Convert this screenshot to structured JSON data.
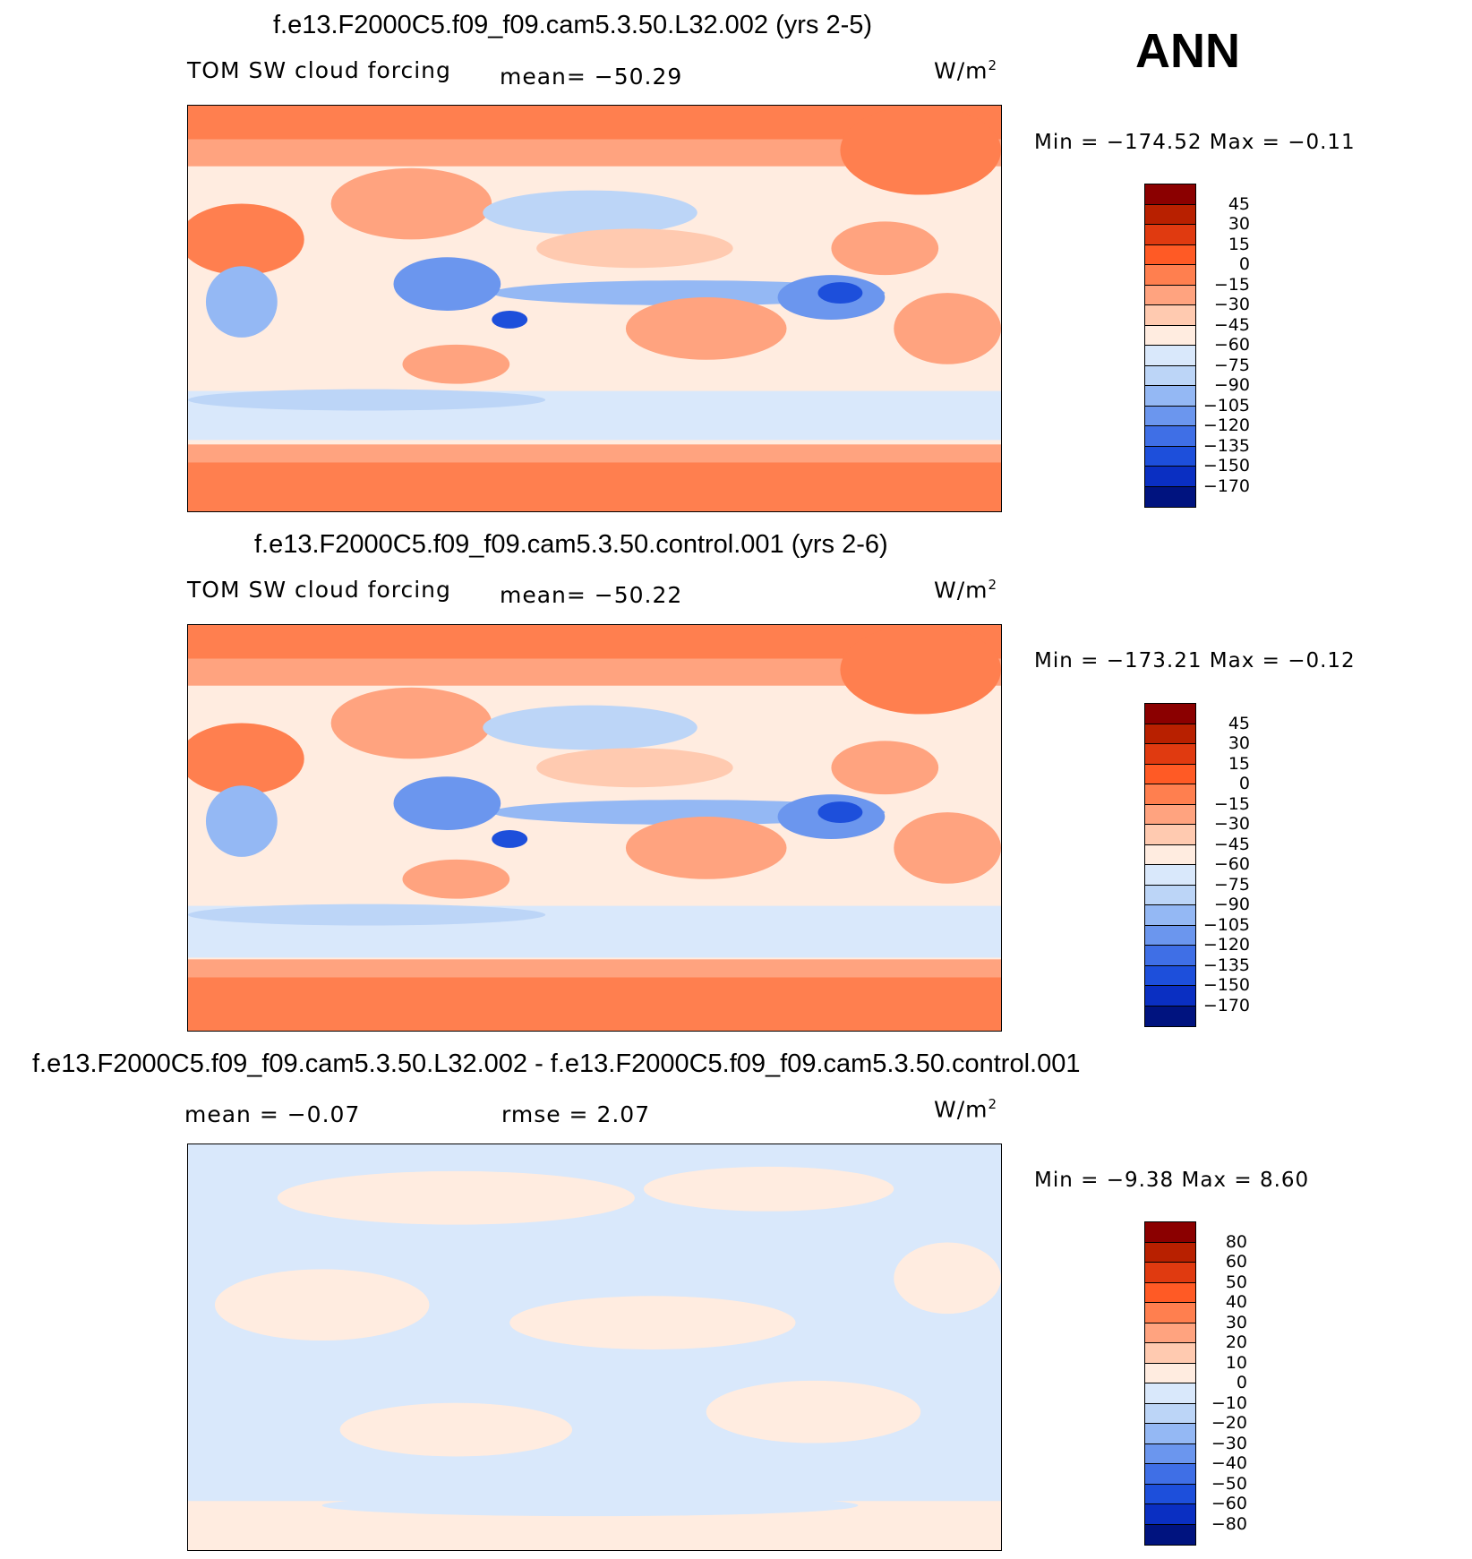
{
  "season": "ANN",
  "units_label": "W/m",
  "units_sup": "2",
  "colors_abs": [
    "#8b0000",
    "#b82000",
    "#e03a10",
    "#ff5a25",
    "#ff7f4f",
    "#ffa37f",
    "#ffcab0",
    "#ffece0",
    "#d9e8fb",
    "#bcd5f7",
    "#94b8f4",
    "#6b96ee",
    "#3f6fe6",
    "#1d4fdb",
    "#0a2fc2",
    "#00137f"
  ],
  "colors_diff": [
    "#8b0000",
    "#b82000",
    "#e03a10",
    "#ff5a25",
    "#ff7f4f",
    "#ffa37f",
    "#ffcab0",
    "#ffece0",
    "#d9e8fb",
    "#bcd5f7",
    "#94b8f4",
    "#6b96ee",
    "#3f6fe6",
    "#1d4fdb",
    "#0a2fc2",
    "#00137f"
  ],
  "panels": [
    {
      "title": "f.e13.F2000C5.f09_f09.cam5.3.50.L32.002 (yrs 2-5)",
      "field": "TOM SW cloud forcing",
      "stat": "mean= −50.29",
      "minmax": "Min = −174.52  Max =   −0.11",
      "levels": [
        "45",
        "30",
        "15",
        "0",
        "−15",
        "−30",
        "−45",
        "−60",
        "−75",
        "−90",
        "−105",
        "−120",
        "−135",
        "−150",
        "−170"
      ]
    },
    {
      "title": "f.e13.F2000C5.f09_f09.cam5.3.50.control.001 (yrs 2-6)",
      "field": "TOM SW cloud forcing",
      "stat": "mean= −50.22",
      "minmax": "Min = −173.21  Max =   −0.12",
      "levels": [
        "45",
        "30",
        "15",
        "0",
        "−15",
        "−30",
        "−45",
        "−60",
        "−75",
        "−90",
        "−105",
        "−120",
        "−135",
        "−150",
        "−170"
      ]
    },
    {
      "title": "f.e13.F2000C5.f09_f09.cam5.3.50.L32.002 - f.e13.F2000C5.f09_f09.cam5.3.50.control.001",
      "stat_mean": "mean =   −0.07",
      "stat_rmse": "rmse =     2.07",
      "minmax": "Min =   −9.38  Max =     8.60",
      "levels": [
        "80",
        "60",
        "50",
        "40",
        "30",
        "20",
        "10",
        "0",
        "−10",
        "−20",
        "−30",
        "−40",
        "−50",
        "−60",
        "−80"
      ]
    }
  ]
}
